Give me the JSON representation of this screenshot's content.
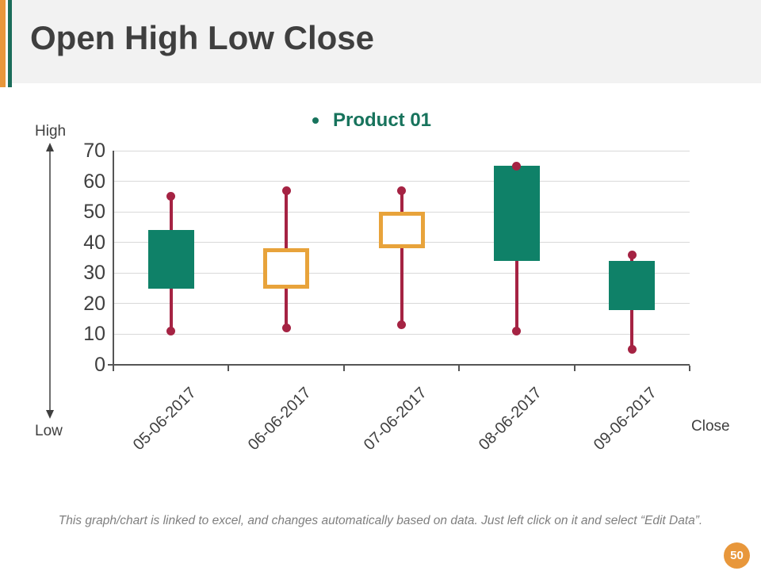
{
  "slide": {
    "title": "Open High Low Close",
    "page_number": "50",
    "footer_note": "This graph/chart is linked to excel, and changes automatically based on data. Just left click on it and select “Edit Data”.",
    "accent_orange": "#E8973B",
    "accent_green": "#1B6D5A"
  },
  "legend": {
    "label": "Product 01",
    "color": "#17735C"
  },
  "axis_annotations": {
    "high_label": "High",
    "low_label": "Low",
    "close_label": "Close"
  },
  "chart_data": {
    "type": "candlestick-ohlc",
    "title": "Product 01",
    "categories": [
      "05-06-2017",
      "06-06-2017",
      "07-06-2017",
      "08-06-2017",
      "09-06-2017"
    ],
    "series": [
      {
        "name": "Product 01",
        "points": [
          {
            "date": "05-06-2017",
            "open": 25,
            "high": 55,
            "low": 11,
            "close": 44
          },
          {
            "date": "06-06-2017",
            "open": 38,
            "high": 57,
            "low": 12,
            "close": 25
          },
          {
            "date": "07-06-2017",
            "open": 50,
            "high": 57,
            "low": 13,
            "close": 38
          },
          {
            "date": "08-06-2017",
            "open": 34,
            "high": 65,
            "low": 11,
            "close": 65
          },
          {
            "date": "09-06-2017",
            "open": 18,
            "high": 36,
            "low": 5,
            "close": 34
          }
        ]
      }
    ],
    "ylim": [
      0,
      70
    ],
    "yticks": [
      0,
      10,
      20,
      30,
      40,
      50,
      60,
      70
    ],
    "grid": true,
    "legend_position": "top-center",
    "colors": {
      "up_fill": "#0F8168",
      "down_border": "#E8A33B",
      "down_fill": "#FFFFFF",
      "wick": "#A52343",
      "gridline": "#D9D9D9",
      "axis": "#555555",
      "text": "#3F3F3F"
    }
  }
}
